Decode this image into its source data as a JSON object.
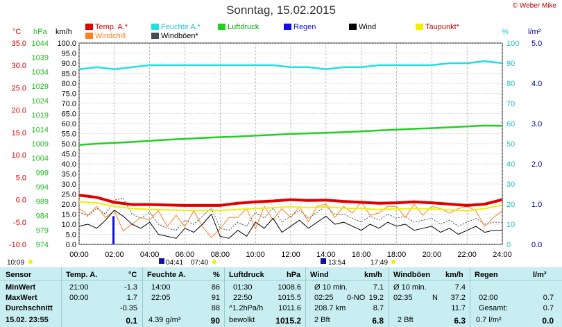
{
  "header": {
    "title": "Sonntag, 15.02.2015",
    "copyright": "© Weber Mike"
  },
  "legend": [
    {
      "label": "Temp. A.*",
      "color": "#e00000"
    },
    {
      "label": "Feuchte A.*",
      "color": "#20e0e0"
    },
    {
      "label": "Luftdruck",
      "color": "#20d020"
    },
    {
      "label": "Regen",
      "color": "#1010e0"
    },
    {
      "label": "Wind",
      "color": "#000000"
    },
    {
      "label": "Taupunkt*",
      "color": "#f0f000"
    },
    {
      "label": "Windchill",
      "color": "#ff8020"
    },
    {
      "label": "Windböen*",
      "color": "#405050"
    }
  ],
  "units": {
    "temp": "°C",
    "pressure": "hPa",
    "wind": "km/h",
    "humidity": "%",
    "rain": "l/m²"
  },
  "chart_data": {
    "type": "line",
    "title": "Sonntag, 15.02.2015",
    "x_ticks": [
      "00:00",
      "02:00",
      "04:00",
      "06:00",
      "08:00",
      "10:00",
      "12:00",
      "14:00",
      "16:00",
      "18:00",
      "20:00",
      "22:00",
      "24:00"
    ],
    "axes": {
      "temp": {
        "range": [
          -10,
          35
        ],
        "ticks": [
          "35.0",
          "30.0",
          "25.0",
          "20.0",
          "15.0",
          "10.0",
          "5.0",
          "0.0",
          "-5.0",
          "-10.0"
        ],
        "color": "#e00000"
      },
      "pressure": {
        "range": [
          974,
          1044
        ],
        "ticks": [
          "1044",
          "1039",
          "1034",
          "1029",
          "1024",
          "1019",
          "1014",
          "1009",
          "1004",
          "999",
          "994",
          "989",
          "984",
          "979",
          "974"
        ],
        "color": "#20c020"
      },
      "wind": {
        "range": [
          0,
          100
        ],
        "ticks": [
          "100.0",
          "95.0",
          "90.0",
          "85.0",
          "80.0",
          "75.0",
          "70.0",
          "65.0",
          "60.0",
          "55.0",
          "50.0",
          "45.0",
          "40.0",
          "35.0",
          "30.0",
          "25.0",
          "20.0",
          "15.0",
          "10.0",
          "5.0",
          "0.0"
        ]
      },
      "humidity": {
        "range": [
          0,
          100
        ],
        "ticks": [
          "100",
          "90",
          "80",
          "70",
          "60",
          "50",
          "40",
          "30",
          "20",
          "10",
          "0"
        ],
        "color": "#20c0c0"
      },
      "rain": {
        "range": [
          0,
          5
        ],
        "ticks": [
          "5.0",
          "4.0",
          "3.0",
          "2.0",
          "1.0",
          "0.0"
        ],
        "color": "#0000a0"
      }
    },
    "grid": true,
    "series": [
      {
        "name": "Temp. A.*",
        "axis": "temp",
        "color": "#e00000",
        "x": [
          0,
          1,
          2,
          3,
          4,
          5,
          6,
          7,
          8,
          9,
          10,
          11,
          12,
          13,
          14,
          15,
          16,
          17,
          18,
          19,
          20,
          21,
          22,
          23,
          24
        ],
        "y": [
          1.0,
          0.5,
          -0.6,
          -1.1,
          -1.1,
          -1.2,
          -1.3,
          -1.3,
          -1.3,
          -0.8,
          -0.5,
          -0.3,
          0.0,
          -0.2,
          -0.1,
          -0.4,
          -0.6,
          -0.8,
          -0.7,
          -0.5,
          -0.7,
          -1.0,
          -1.3,
          -1.0,
          0.0
        ]
      },
      {
        "name": "Feuchte A.*",
        "axis": "humidity",
        "color": "#20e0e0",
        "x": [
          0,
          1,
          2,
          3,
          4,
          5,
          6,
          7,
          8,
          9,
          10,
          11,
          12,
          13,
          14,
          15,
          16,
          17,
          18,
          19,
          20,
          21,
          22,
          23,
          24
        ],
        "y": [
          87,
          88,
          87,
          88,
          89,
          89,
          89,
          89,
          89,
          89,
          89,
          89,
          88,
          88,
          87,
          88,
          88,
          89,
          89,
          89,
          89,
          90,
          90,
          91,
          90
        ]
      },
      {
        "name": "Luftdruck",
        "axis": "pressure",
        "color": "#20d020",
        "x": [
          0,
          1,
          2,
          3,
          4,
          5,
          6,
          7,
          8,
          9,
          10,
          11,
          12,
          13,
          14,
          15,
          16,
          17,
          18,
          19,
          20,
          21,
          22,
          23,
          24
        ],
        "y": [
          1008.6,
          1009.0,
          1009.3,
          1009.6,
          1010.0,
          1010.4,
          1010.7,
          1011.0,
          1011.3,
          1011.5,
          1011.8,
          1012.1,
          1012.4,
          1012.6,
          1012.8,
          1013.0,
          1013.3,
          1013.6,
          1013.9,
          1014.2,
          1014.4,
          1014.7,
          1015.0,
          1015.3,
          1015.2
        ]
      },
      {
        "name": "Taupunkt*",
        "axis": "temp",
        "color": "#f0f000",
        "x": [
          0,
          1,
          2,
          3,
          4,
          5,
          6,
          7,
          8,
          9,
          10,
          11,
          12,
          13,
          14,
          15,
          16,
          17,
          18,
          19,
          20,
          21,
          22,
          23,
          24
        ],
        "y": [
          -0.5,
          -0.7,
          -1.5,
          -2.0,
          -2.2,
          -2.3,
          -2.4,
          -2.4,
          -2.4,
          -2.2,
          -2.0,
          -1.8,
          -1.6,
          -1.8,
          -1.6,
          -1.9,
          -2.0,
          -2.2,
          -2.1,
          -2.0,
          -2.1,
          -2.3,
          -2.5,
          -2.0,
          -1.2
        ]
      },
      {
        "name": "Windchill",
        "axis": "temp",
        "color": "#ff8020",
        "x": [
          0,
          0.5,
          1,
          1.5,
          2,
          2.5,
          3,
          3.5,
          4,
          4.5,
          5,
          5.5,
          6,
          6.5,
          7,
          7.5,
          8,
          8.5,
          9,
          9.5,
          10,
          10.5,
          11,
          11.5,
          12,
          12.5,
          13,
          13.5,
          14,
          14.5,
          15,
          15.5,
          16,
          16.5,
          17,
          17.5,
          18,
          18.5,
          19,
          19.5,
          20,
          20.5,
          21,
          21.5,
          22,
          22.5,
          23,
          23.5,
          24
        ],
        "y": [
          -2.0,
          -3.5,
          -1.5,
          -4.0,
          -2.5,
          -7.0,
          -5.5,
          -4.0,
          -4.5,
          -2.5,
          -6.0,
          -3.5,
          -6.0,
          -2.5,
          -6.0,
          -8.5,
          -6.5,
          -4.0,
          -4.0,
          -2.0,
          -6.5,
          -1.5,
          -4.5,
          -2.0,
          -4.0,
          -1.5,
          -5.0,
          -1.5,
          -1.0,
          -4.0,
          -1.5,
          -3.0,
          -0.5,
          -3.5,
          -3.0,
          -1.5,
          -1.5,
          -4.0,
          -1.0,
          -3.5,
          -1.5,
          -2.0,
          -3.0,
          -2.0,
          -1.5,
          -2.5,
          -6.0,
          -4.0,
          -2.5
        ]
      },
      {
        "name": "Wind",
        "axis": "wind",
        "color": "#000000",
        "x": [
          0,
          0.5,
          1,
          1.5,
          2,
          2.5,
          3,
          3.5,
          4,
          4.5,
          5,
          5.5,
          6,
          6.5,
          7,
          7.5,
          8,
          8.5,
          9,
          9.5,
          10,
          10.5,
          11,
          11.5,
          12,
          12.5,
          13,
          13.5,
          14,
          14.5,
          15,
          15.5,
          16,
          16.5,
          17,
          17.5,
          18,
          18.5,
          19,
          19.5,
          20,
          20.5,
          21,
          21.5,
          22,
          22.5,
          23,
          23.5,
          24
        ],
        "y": [
          9,
          10,
          8,
          12,
          17,
          14,
          10,
          8,
          11,
          5,
          4,
          3,
          8,
          6,
          10,
          15,
          4,
          3,
          7,
          4,
          11,
          8,
          13,
          6,
          9,
          12,
          8,
          11,
          14,
          10,
          11,
          9,
          7,
          10,
          8,
          11,
          9,
          10,
          7,
          8,
          9,
          6,
          8,
          5,
          7,
          9,
          6,
          7,
          7
        ]
      },
      {
        "name": "Windböen*",
        "axis": "wind",
        "color": "#405050",
        "x": [
          0,
          0.5,
          1,
          1.5,
          2,
          2.5,
          3,
          3.5,
          4,
          4.5,
          5,
          5.5,
          6,
          6.5,
          7,
          7.5,
          8,
          8.5,
          9,
          9.5,
          10,
          10.5,
          11,
          11.5,
          12,
          12.5,
          13,
          13.5,
          14,
          14.5,
          15,
          15.5,
          16,
          16.5,
          17,
          17.5,
          18,
          18.5,
          19,
          19.5,
          20,
          20.5,
          21,
          21.5,
          22,
          22.5,
          23,
          23.5,
          24
        ],
        "y": [
          16,
          14,
          18,
          15,
          22,
          23,
          15,
          13,
          16,
          10,
          8,
          7,
          12,
          10,
          14,
          18,
          8,
          7,
          11,
          9,
          16,
          13,
          18,
          11,
          14,
          17,
          13,
          16,
          19,
          15,
          15,
          13,
          11,
          14,
          12,
          15,
          13,
          14,
          11,
          12,
          13,
          10,
          12,
          9,
          11,
          13,
          10,
          11,
          11
        ]
      }
    ],
    "rain_bars": [
      {
        "x": 1.95,
        "y": 0.7
      }
    ],
    "annotations": {
      "bottom_left": "10:09",
      "sunrise": "04:41",
      "morning": "07:40",
      "noon": "13:54",
      "evening": "17:49"
    }
  },
  "table": {
    "header": [
      "Sensor",
      "Temp. A.",
      "°C",
      "Feuchte A.",
      "%",
      "Luftdruck",
      "hPa",
      "Wind",
      "km/h",
      "Windböen",
      "km/h",
      "Regen",
      "l/m²"
    ],
    "rows": [
      {
        "label": "MinWert",
        "temp_time": "21:00",
        "temp": "-1.3",
        "hum_time": "14:00",
        "hum": "86",
        "press_time": "01:30",
        "press": "1008.6",
        "wind_a": "Ø 10 min.",
        "wind": "7.1",
        "gust_a": "Ø 10 min.",
        "gust": "7.4",
        "rain_a": "",
        "rain": ""
      },
      {
        "label": "MaxWert",
        "temp_time": "00:00",
        "temp": "1.7",
        "hum_time": "22:05",
        "hum": "91",
        "press_time": "22:50",
        "press": "1015.5",
        "wind_a": "02:25",
        "wind_b": "0-NO",
        "wind": "19.2",
        "gust_a": "02:35",
        "gust_b": "N",
        "gust": "37.2",
        "rain_a": "02:00",
        "rain": "0.7"
      },
      {
        "label": "Durchschnitt",
        "temp_time": "",
        "temp": "-0.35",
        "hum_time": "",
        "hum": "88",
        "press_time": "^1.2hPa/h",
        "press": "1011.6",
        "wind_a": "208.7 km",
        "wind": "8.7",
        "gust_a": "",
        "gust": "11.7",
        "rain_a": "Gesamt:",
        "rain": "0.7"
      },
      {
        "label": "15.02. 23:55",
        "temp_time": "",
        "temp": "0.1",
        "hum_time": "4.39 g/m³",
        "hum": "90",
        "press_time": "bewolkt",
        "press": "1015.2",
        "wind_a": "2 Bft",
        "wind": "6.8",
        "gust_a": "2 Bft",
        "gust": "6.3",
        "rain_a": "0.7 l/m²",
        "rain": "0.0"
      }
    ]
  }
}
